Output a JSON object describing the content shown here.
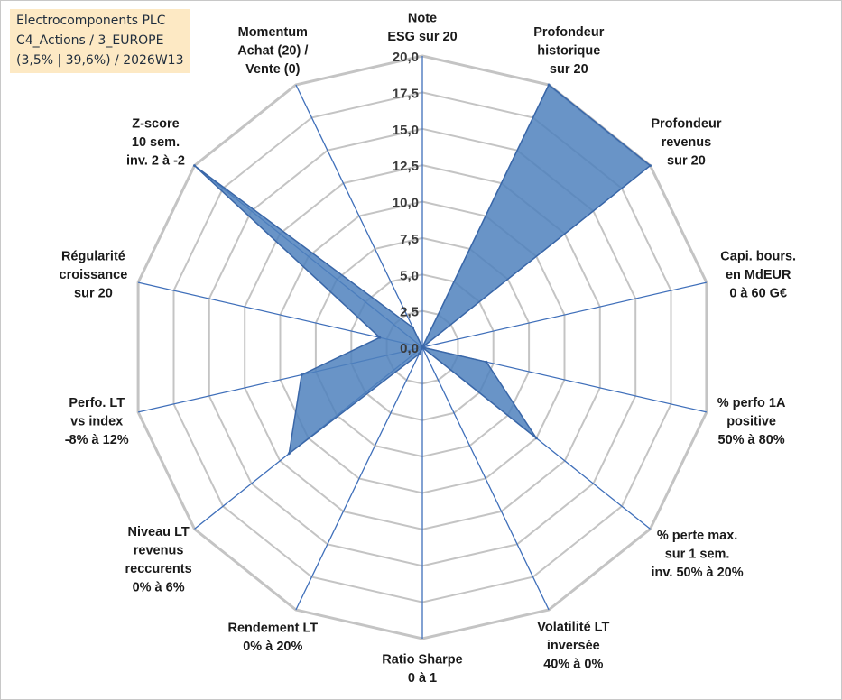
{
  "title": {
    "line1": "Electrocomponents PLC",
    "line2": "C4_Actions / 3_EUROPE",
    "line3": "(3,5% | 39,6%) / 2026W13"
  },
  "colors": {
    "fill": "#4f81bd",
    "stroke": "#3a67a8",
    "grid": "#c4c4c4",
    "spoke": "#3f6fba",
    "title_bg": "#fde9c4"
  },
  "chart_data": {
    "type": "radar",
    "title": "Electrocomponents PLC",
    "rlim": [
      0,
      20
    ],
    "grid": true,
    "ticks": [
      "0,0",
      "2,5",
      "5,0",
      "7,5",
      "10,0",
      "12,5",
      "15,0",
      "17,5",
      "20,0"
    ],
    "axes": [
      [
        "Note",
        "ESG sur 20"
      ],
      [
        "Profondeur",
        "historique",
        "sur 20"
      ],
      [
        "Profondeur",
        "revenus",
        "sur 20"
      ],
      [
        "Capi. bours.",
        "en MdEUR",
        "0 à 60 G€"
      ],
      [
        "% perfo 1A",
        "positive",
        "50% à 80%"
      ],
      [
        "% perte max.",
        "sur 1 sem.",
        "inv. 50% à 20%"
      ],
      [
        "Volatilité LT",
        "inversée",
        "40% à 0%"
      ],
      [
        "Ratio Sharpe",
        "0 à 1"
      ],
      [
        "Rendement LT",
        "0% à 20%"
      ],
      [
        "Niveau LT",
        "revenus",
        "reccurents",
        "0% à 6%"
      ],
      [
        "Perfo. LT",
        "vs index",
        "-8% à 12%"
      ],
      [
        "Régularité",
        "croissance",
        "sur 20"
      ],
      [
        "Z-score",
        "10 sem.",
        "inv. 2 à -2"
      ],
      [
        "Momentum",
        "Achat (20) /",
        "Vente (0)"
      ]
    ],
    "series": [
      {
        "name": "Electrocomponents PLC",
        "values": [
          0,
          20,
          20,
          0,
          4.5,
          10,
          0,
          0,
          0.5,
          11.7,
          8.5,
          3,
          20,
          1.5
        ]
      }
    ]
  }
}
